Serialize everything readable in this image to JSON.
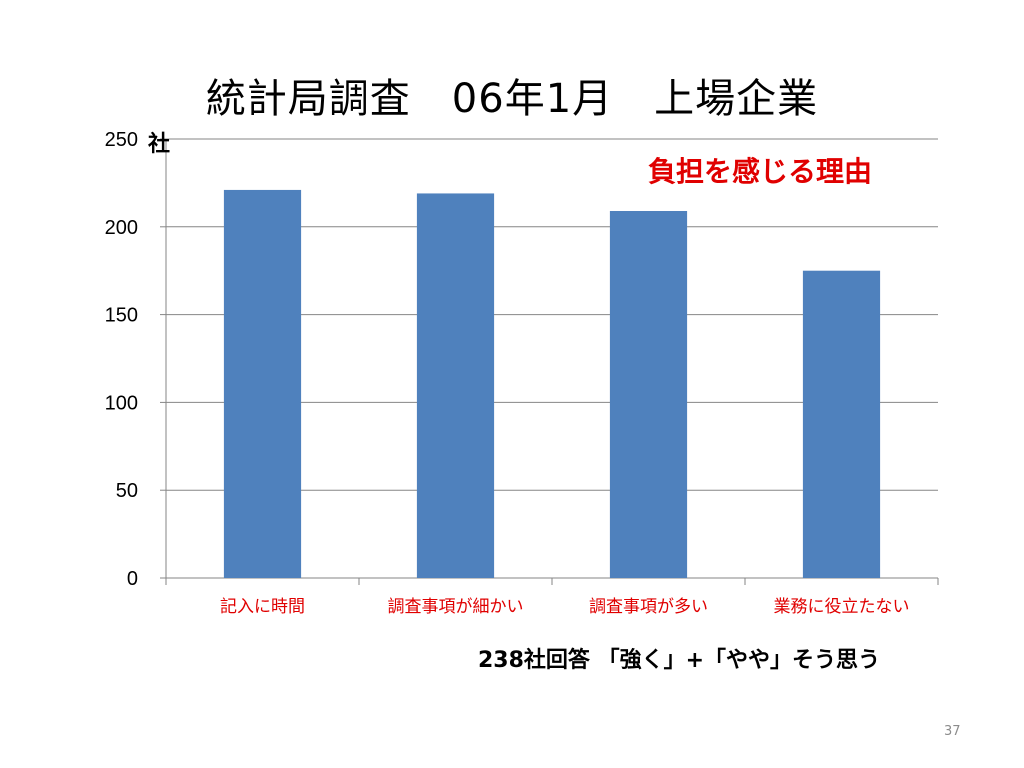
{
  "slide": {
    "title": "統計局調査　06年1月　上場企業",
    "unit_label": "社",
    "annotation": "負担を感じる理由",
    "footnote": "238社回答 「強く」+「やや」そう思う",
    "page_number": "37"
  },
  "chart_data": {
    "type": "bar",
    "title": "統計局調査　06年1月　上場企業",
    "categories": [
      "記入に時間",
      "調査事項が細かい",
      "調査事項が多い",
      "業務に役立たない"
    ],
    "values": [
      221,
      219,
      209,
      175
    ],
    "ylim": [
      0,
      250
    ],
    "yticks": [
      0,
      50,
      100,
      150,
      200,
      250
    ],
    "ylabel": "社",
    "grid": true,
    "colors": {
      "bar": "#4f81bd",
      "grid": "#868686",
      "tick_label_x": "#e00000"
    }
  }
}
